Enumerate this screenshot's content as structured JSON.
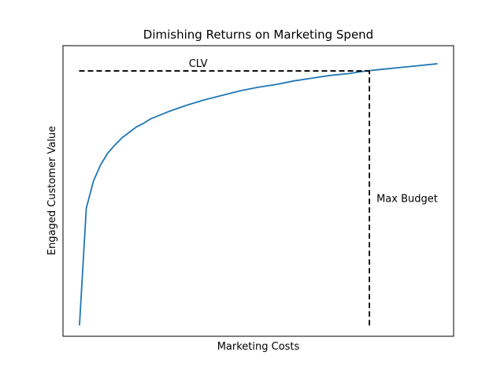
{
  "chart_data": {
    "type": "line",
    "title": "Dimishing Returns on Marketing Spend",
    "xlabel": "Marketing Costs",
    "ylabel": "Engaged Customer Value",
    "xlim": [
      -0.45,
      10.45
    ],
    "ylim": [
      -0.12,
      3.1
    ],
    "x_ticks_visible": false,
    "y_ticks_visible": false,
    "grid": false,
    "series": [
      {
        "color": "#1f77b4",
        "x": [
          0.01,
          0.2,
          0.4,
          0.6,
          0.8,
          1.0,
          1.2,
          1.4,
          1.6,
          1.8,
          2.0,
          2.5,
          3.0,
          3.5,
          4.0,
          4.5,
          5.0,
          5.5,
          6.0,
          6.5,
          7.0,
          7.5,
          8.0,
          8.5,
          9.0,
          9.5,
          10.0
        ],
        "y": [
          0.0,
          1.3,
          1.6,
          1.78,
          1.91,
          2.0,
          2.08,
          2.14,
          2.2,
          2.24,
          2.29,
          2.37,
          2.44,
          2.5,
          2.55,
          2.6,
          2.64,
          2.67,
          2.71,
          2.74,
          2.77,
          2.79,
          2.82,
          2.84,
          2.86,
          2.88,
          2.9
        ]
      }
    ],
    "annotations": [
      {
        "id": "clv",
        "text": "CLV",
        "type": "hline",
        "y": 2.82,
        "x_from": 0.0,
        "x_to": 8.1,
        "style": "dashed",
        "color": "#000000"
      },
      {
        "id": "max-budget",
        "text": "Max Budget",
        "type": "vline",
        "x": 8.1,
        "y_from": 0.0,
        "y_to": 2.82,
        "style": "dashed",
        "color": "#000000"
      }
    ]
  }
}
